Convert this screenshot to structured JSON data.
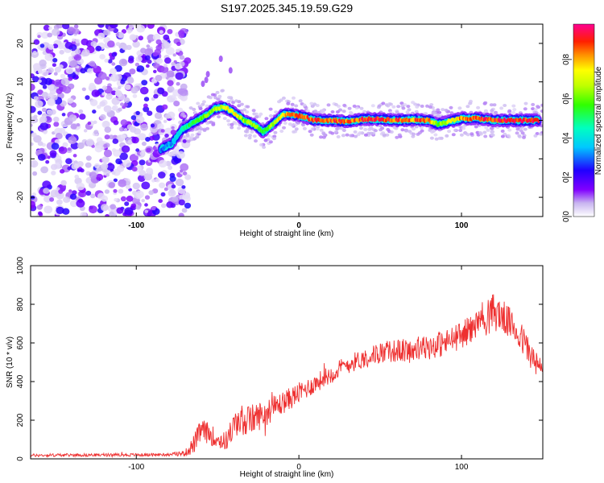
{
  "title": "S197.2025.345.19.59.G29",
  "chart_data": [
    {
      "type": "heatmap",
      "xlabel": "Height of straight line (km)",
      "ylabel": "Frequency (Hz)",
      "xlim": [
        -165,
        150
      ],
      "ylim": [
        -25,
        25
      ],
      "xticks": [
        -100,
        0,
        100
      ],
      "yticks": [
        -20,
        -10,
        0,
        10,
        20
      ],
      "colorbar": {
        "label": "Normalized spectral amplitude",
        "range": [
          0,
          0.98
        ],
        "ticks": [
          "0.0",
          "0.2",
          "0.4",
          "0.6",
          "0.8"
        ]
      },
      "noise_region_x": [
        -165,
        -72
      ],
      "ridge": {
        "x": [
          -85,
          -78,
          -72,
          -65,
          -58,
          -52,
          -46,
          -40,
          -34,
          -28,
          -22,
          -16,
          -10,
          -4,
          2,
          10,
          20,
          30,
          40,
          50,
          60,
          70,
          80,
          85,
          90,
          100,
          110,
          120,
          130,
          140,
          148
        ],
        "freq": [
          -7.5,
          -6,
          -2.5,
          -0.5,
          1,
          3,
          3.5,
          2,
          0,
          -1,
          -3,
          -1,
          1.5,
          1.5,
          1,
          0,
          0,
          -0.3,
          0.3,
          0.3,
          0,
          0.2,
          0,
          -1,
          -0.5,
          0.5,
          0.5,
          0,
          0,
          0,
          0
        ],
        "amplitude": [
          0.3,
          0.35,
          0.45,
          0.6,
          0.6,
          0.7,
          0.75,
          0.8,
          0.65,
          0.7,
          0.55,
          0.7,
          0.8,
          0.85,
          0.88,
          0.9,
          0.92,
          0.88,
          0.9,
          0.92,
          0.9,
          0.88,
          0.9,
          0.6,
          0.7,
          0.85,
          0.9,
          0.92,
          0.95,
          0.95,
          0.95
        ]
      },
      "outlier_points": [
        [
          -59,
          9.5
        ],
        [
          -57,
          10.5
        ],
        [
          -56,
          12
        ],
        [
          -48,
          16
        ],
        [
          -42,
          13
        ]
      ]
    },
    {
      "type": "line",
      "xlabel": "Height of straight line (km)",
      "ylabel": "SNR (10 * v/v)",
      "xlim": [
        -165,
        150
      ],
      "ylim": [
        0,
        1000
      ],
      "xticks": [
        -100,
        0,
        100
      ],
      "yticks": [
        0,
        200,
        400,
        600,
        800,
        1000
      ],
      "series_name": "SNR",
      "x": [
        -165,
        -140,
        -110,
        -80,
        -70,
        -65,
        -60,
        -55,
        -50,
        -45,
        -40,
        -35,
        -30,
        -20,
        -10,
        0,
        10,
        20,
        30,
        40,
        50,
        60,
        70,
        80,
        90,
        100,
        110,
        115,
        120,
        125,
        130,
        135,
        140,
        145,
        150
      ],
      "mean": [
        18,
        20,
        20,
        22,
        30,
        70,
        150,
        130,
        100,
        90,
        170,
        200,
        200,
        240,
        290,
        340,
        390,
        440,
        490,
        520,
        550,
        560,
        560,
        580,
        600,
        640,
        700,
        740,
        760,
        740,
        700,
        650,
        580,
        500,
        450
      ],
      "noise_amplitude": [
        8,
        8,
        8,
        8,
        15,
        50,
        60,
        55,
        50,
        50,
        70,
        80,
        80,
        70,
        60,
        55,
        50,
        50,
        50,
        50,
        55,
        60,
        65,
        70,
        70,
        70,
        80,
        110,
        100,
        90,
        80,
        80,
        80,
        70,
        60
      ]
    }
  ]
}
